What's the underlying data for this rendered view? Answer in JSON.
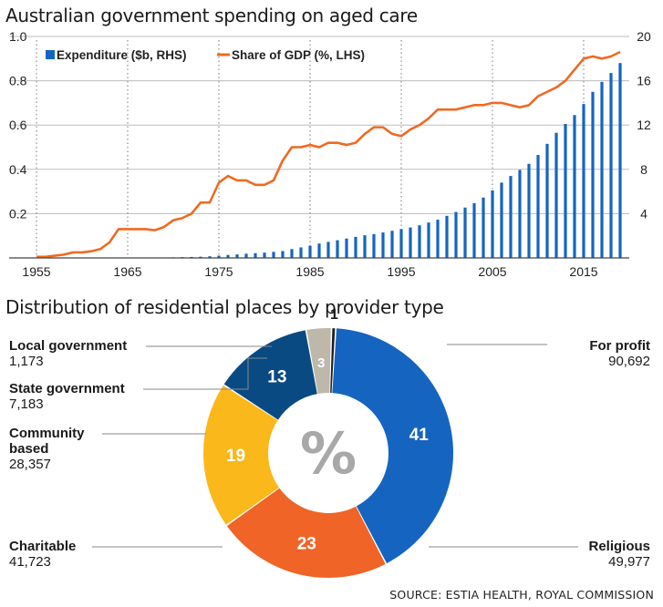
{
  "line_chart": {
    "title": "Australian government spending on aged care"
  },
  "donut_chart": {
    "title": "Distribution of residential places by provider type"
  },
  "source": "SOURCE: ESTIA HEALTH, ROYAL COMMISSION",
  "colors": {
    "bar": "#1565c0",
    "line": "#ef6a22",
    "for_profit": "#1565c0",
    "religious": "#f06427",
    "charitable": "#fbb81a",
    "community": "#0a4a82",
    "state_gov": "#bdb8aa",
    "local_gov": "#1f1f1f"
  },
  "chart_data": [
    {
      "type": "line",
      "title": "Australian government spending on aged care",
      "legend_position": "top-left",
      "x_ticks": [
        "1955",
        "1965",
        "1975",
        "1985",
        "1995",
        "2005",
        "2015"
      ],
      "y_left": {
        "ticks": [
          "0.2",
          "0.4",
          "0.6",
          "0.8",
          "1.0"
        ],
        "range": [
          0,
          1.0
        ]
      },
      "y_right": {
        "ticks": [
          "4",
          "8",
          "12",
          "16",
          "20"
        ],
        "range": [
          0,
          20
        ]
      },
      "grid": "horizontal solid, vertical dotted at tick years",
      "series": [
        {
          "name": "Expenditure ($b, RHS)",
          "type": "bar",
          "axis": "right",
          "x": [
            1970,
            1971,
            1972,
            1973,
            1974,
            1975,
            1976,
            1977,
            1978,
            1979,
            1980,
            1981,
            1982,
            1983,
            1984,
            1985,
            1986,
            1987,
            1988,
            1989,
            1990,
            1991,
            1992,
            1993,
            1994,
            1995,
            1996,
            1997,
            1998,
            1999,
            2000,
            2001,
            2002,
            2003,
            2004,
            2005,
            2006,
            2007,
            2008,
            2009,
            2010,
            2011,
            2012,
            2013,
            2014,
            2015,
            2016,
            2017,
            2018,
            2019
          ],
          "values": [
            0.05,
            0.07,
            0.09,
            0.11,
            0.15,
            0.2,
            0.27,
            0.32,
            0.38,
            0.43,
            0.48,
            0.55,
            0.62,
            0.8,
            0.95,
            1.1,
            1.3,
            1.45,
            1.6,
            1.75,
            1.9,
            2.05,
            2.15,
            2.3,
            2.45,
            2.6,
            2.75,
            2.95,
            3.2,
            3.45,
            3.8,
            4.15,
            4.55,
            4.95,
            5.45,
            6.1,
            6.8,
            7.4,
            7.95,
            8.5,
            9.3,
            10.3,
            11.3,
            12.1,
            12.9,
            13.9,
            15.0,
            15.9,
            16.7,
            17.6
          ]
        },
        {
          "name": "Share of GDP (%, LHS)",
          "type": "line",
          "axis": "left",
          "x": [
            1955,
            1956,
            1957,
            1958,
            1959,
            1960,
            1961,
            1962,
            1963,
            1964,
            1965,
            1966,
            1967,
            1968,
            1969,
            1970,
            1971,
            1972,
            1973,
            1974,
            1975,
            1976,
            1977,
            1978,
            1979,
            1980,
            1981,
            1982,
            1983,
            1984,
            1985,
            1986,
            1987,
            1988,
            1989,
            1990,
            1991,
            1992,
            1993,
            1994,
            1995,
            1996,
            1997,
            1998,
            1999,
            2000,
            2001,
            2002,
            2003,
            2004,
            2005,
            2006,
            2007,
            2008,
            2009,
            2010,
            2011,
            2012,
            2013,
            2014,
            2015,
            2016,
            2017,
            2018,
            2019
          ],
          "values": [
            0.005,
            0.005,
            0.01,
            0.015,
            0.025,
            0.025,
            0.03,
            0.04,
            0.07,
            0.13,
            0.13,
            0.13,
            0.13,
            0.125,
            0.14,
            0.17,
            0.18,
            0.2,
            0.25,
            0.25,
            0.34,
            0.37,
            0.35,
            0.35,
            0.33,
            0.33,
            0.35,
            0.44,
            0.5,
            0.5,
            0.51,
            0.5,
            0.52,
            0.52,
            0.51,
            0.52,
            0.56,
            0.59,
            0.59,
            0.56,
            0.55,
            0.58,
            0.6,
            0.63,
            0.67,
            0.67,
            0.67,
            0.68,
            0.69,
            0.69,
            0.7,
            0.7,
            0.69,
            0.68,
            0.69,
            0.73,
            0.75,
            0.77,
            0.8,
            0.85,
            0.9,
            0.91,
            0.9,
            0.91,
            0.93
          ]
        }
      ]
    },
    {
      "type": "pie",
      "variant": "donut",
      "title": "Distribution of residential places by provider type",
      "center_label": "%",
      "slices": [
        {
          "name": "For profit",
          "value": 90692,
          "percent": "41",
          "color": "#1565c0",
          "side": "right"
        },
        {
          "name": "Religious",
          "value": 49977,
          "percent": "23",
          "color": "#f06427",
          "side": "right"
        },
        {
          "name": "Charitable",
          "value": 41723,
          "percent": "19",
          "color": "#fbb81a",
          "side": "left"
        },
        {
          "name": "Community based",
          "value": 28357,
          "percent": "13",
          "color": "#0a4a82",
          "side": "left"
        },
        {
          "name": "State government",
          "value": 7183,
          "percent": "3",
          "color": "#bdb8aa",
          "side": "left"
        },
        {
          "name": "Local government",
          "value": 1173,
          "percent": "1",
          "color": "#1f1f1f",
          "side": "left"
        }
      ],
      "labels": [
        {
          "lines": [
            "For profit"
          ],
          "value": "90,692"
        },
        {
          "lines": [
            "Religious"
          ],
          "value": "49,977"
        },
        {
          "lines": [
            "Charitable"
          ],
          "value": "41,723"
        },
        {
          "lines": [
            "Community",
            "based"
          ],
          "value": "28,357"
        },
        {
          "lines": [
            "State government"
          ],
          "value": "7,183"
        },
        {
          "lines": [
            "Local government"
          ],
          "value": "1,173"
        }
      ]
    }
  ]
}
